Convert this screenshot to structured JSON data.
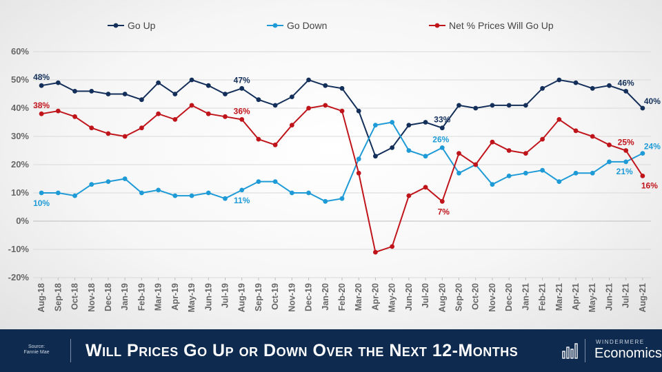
{
  "chart_data": {
    "type": "line",
    "title": "Will Prices Go Up or Down Over the Next 12-Months",
    "categories": [
      "Aug-18",
      "Sep-18",
      "Oct-18",
      "Nov-18",
      "Dec-18",
      "Jan-19",
      "Feb-19",
      "Mar-19",
      "Apr-19",
      "May-19",
      "Jun-19",
      "Jul-19",
      "Aug-19",
      "Sep-19",
      "Oct-19",
      "Nov-19",
      "Dec-19",
      "Jan-20",
      "Feb-20",
      "Mar-20",
      "Apr-20",
      "May-20",
      "Jun-20",
      "Jul-20",
      "Aug-20",
      "Sep-20",
      "Oct-20",
      "Nov-20",
      "Dec-20",
      "Jan-21",
      "Feb-21",
      "Mar-21",
      "Apr-21",
      "May-21",
      "Jun-21",
      "Jul-21",
      "Aug-21"
    ],
    "ylim": [
      -20,
      60
    ],
    "yticks": [
      -20,
      -10,
      0,
      10,
      20,
      30,
      40,
      50,
      60
    ],
    "ytick_labels": [
      "-20%",
      "-10%",
      "0%",
      "10%",
      "20%",
      "30%",
      "40%",
      "50%",
      "60%"
    ],
    "legend_position": "top",
    "grid": true,
    "series": [
      {
        "name": "Go Up",
        "color": "#14305a",
        "values": [
          48,
          49,
          46,
          46,
          45,
          45,
          43,
          49,
          45,
          50,
          48,
          45,
          47,
          43,
          41,
          44,
          50,
          48,
          47,
          39,
          23,
          26,
          34,
          35,
          33,
          41,
          40,
          41,
          41,
          41,
          47,
          50,
          49,
          47,
          48,
          46,
          40
        ],
        "labels": [
          {
            "i": 0,
            "text": "48%"
          },
          {
            "i": 12,
            "text": "47%"
          },
          {
            "i": 24,
            "text": "33%"
          },
          {
            "i": 35,
            "text": "46%"
          },
          {
            "i": 36,
            "text": "40%"
          }
        ]
      },
      {
        "name": "Go Down",
        "color": "#1e9bd7",
        "values": [
          10,
          10,
          9,
          13,
          14,
          15,
          10,
          11,
          9,
          9,
          10,
          8,
          11,
          14,
          14,
          10,
          10,
          7,
          8,
          22,
          34,
          35,
          25,
          23,
          26,
          17,
          20,
          13,
          16,
          17,
          18,
          14,
          17,
          17,
          21,
          21,
          24
        ],
        "labels": [
          {
            "i": 0,
            "text": "10%"
          },
          {
            "i": 12,
            "text": "11%"
          },
          {
            "i": 24,
            "text": "26%"
          },
          {
            "i": 35,
            "text": "21%"
          },
          {
            "i": 36,
            "text": "24%"
          }
        ]
      },
      {
        "name": "Net % Prices Will Go Up",
        "color": "#c0141b",
        "values": [
          38,
          39,
          37,
          33,
          31,
          30,
          33,
          38,
          36,
          41,
          38,
          37,
          36,
          29,
          27,
          34,
          40,
          41,
          39,
          17,
          -11,
          -9,
          9,
          12,
          7,
          24,
          20,
          28,
          25,
          24,
          29,
          36,
          32,
          30,
          27,
          25,
          16
        ],
        "labels": [
          {
            "i": 0,
            "text": "38%"
          },
          {
            "i": 12,
            "text": "36%"
          },
          {
            "i": 24,
            "text": "7%"
          },
          {
            "i": 35,
            "text": "25%"
          },
          {
            "i": 36,
            "text": "16%"
          }
        ]
      }
    ]
  },
  "footer": {
    "source_label": "Source:",
    "source_name": "Fannie Mae",
    "title": "Will Prices Go Up or Down Over the Next 12-Months",
    "brand_top": "WINDERMERE",
    "brand_bottom": "Economics"
  },
  "icons": {
    "brand_icon": "bar-chart-icon"
  }
}
